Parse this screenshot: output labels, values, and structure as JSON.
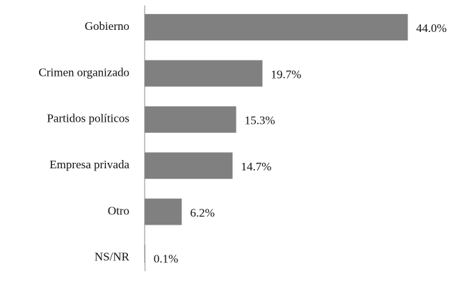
{
  "chart_data": {
    "type": "hbar",
    "categories": [
      "Gobierno",
      "Crimen organizado",
      "Partidos políticos",
      "Empresa privada",
      "Otro",
      "NS/NR"
    ],
    "values": [
      44.0,
      19.7,
      15.3,
      14.7,
      6.2,
      0.1
    ],
    "value_labels": [
      "44.0%",
      "19.7%",
      "15.3%",
      "14.7%",
      "6.2%",
      "0.1%"
    ],
    "color": "#808080",
    "xlim": [
      0,
      50
    ]
  }
}
